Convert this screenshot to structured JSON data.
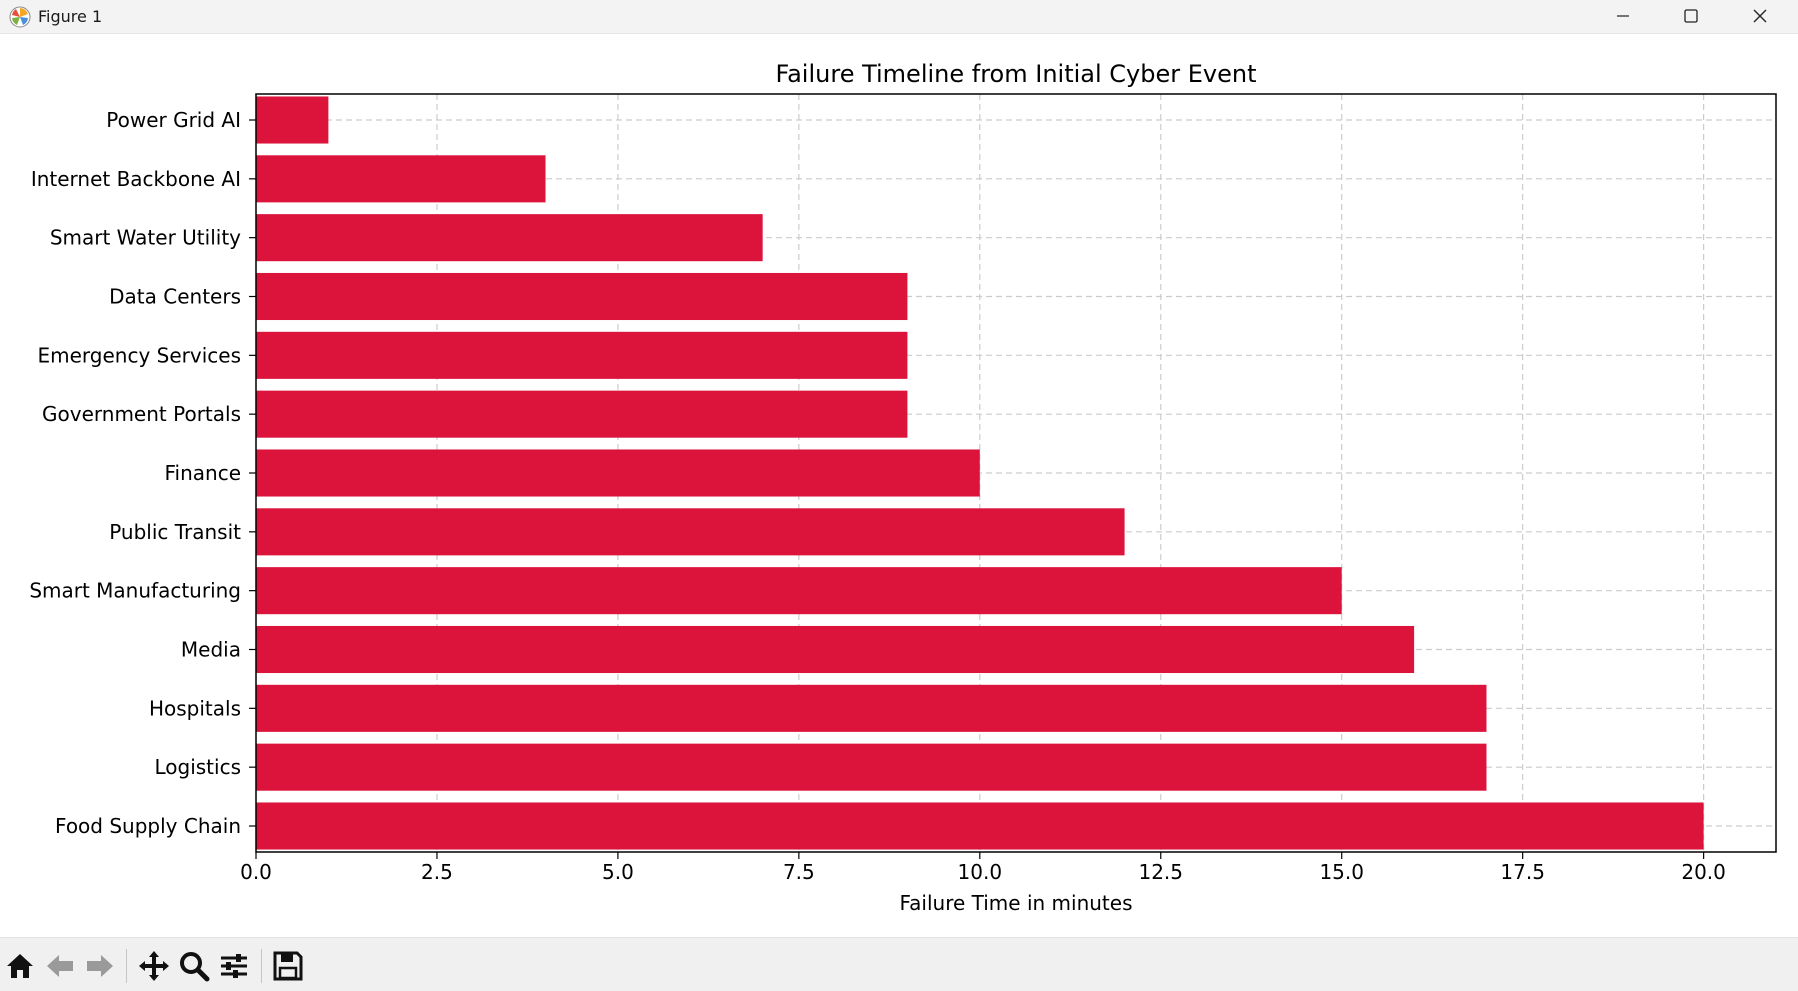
{
  "window": {
    "title": "Figure 1",
    "icons": [
      "matplotlib-logo-icon",
      "minimize-icon",
      "maximize-icon",
      "close-icon"
    ]
  },
  "toolbar": {
    "icons": [
      "home-icon",
      "back-arrow-icon",
      "forward-arrow-icon",
      "pan-icon",
      "zoom-icon",
      "configure-subplots-icon",
      "save-icon"
    ]
  },
  "chart_data": {
    "type": "bar",
    "orientation": "horizontal",
    "title": "Failure Timeline from Initial Cyber Event",
    "xlabel": "Failure Time in minutes",
    "ylabel": "",
    "categories": [
      "Food Supply Chain",
      "Logistics",
      "Hospitals",
      "Media",
      "Smart Manufacturing",
      "Public Transit",
      "Finance",
      "Government Portals",
      "Emergency Services",
      "Data Centers",
      "Smart Water Utility",
      "Internet Backbone AI",
      "Power Grid AI"
    ],
    "values": [
      20,
      17,
      17,
      16,
      15,
      12,
      10,
      9,
      9,
      9,
      7,
      4,
      1
    ],
    "xlim": [
      0,
      21
    ],
    "xticks": [
      "0.0",
      "2.5",
      "5.0",
      "7.5",
      "10.0",
      "12.5",
      "15.0",
      "17.5",
      "20.0"
    ],
    "grid": true,
    "bar_color": "#dc143c"
  }
}
